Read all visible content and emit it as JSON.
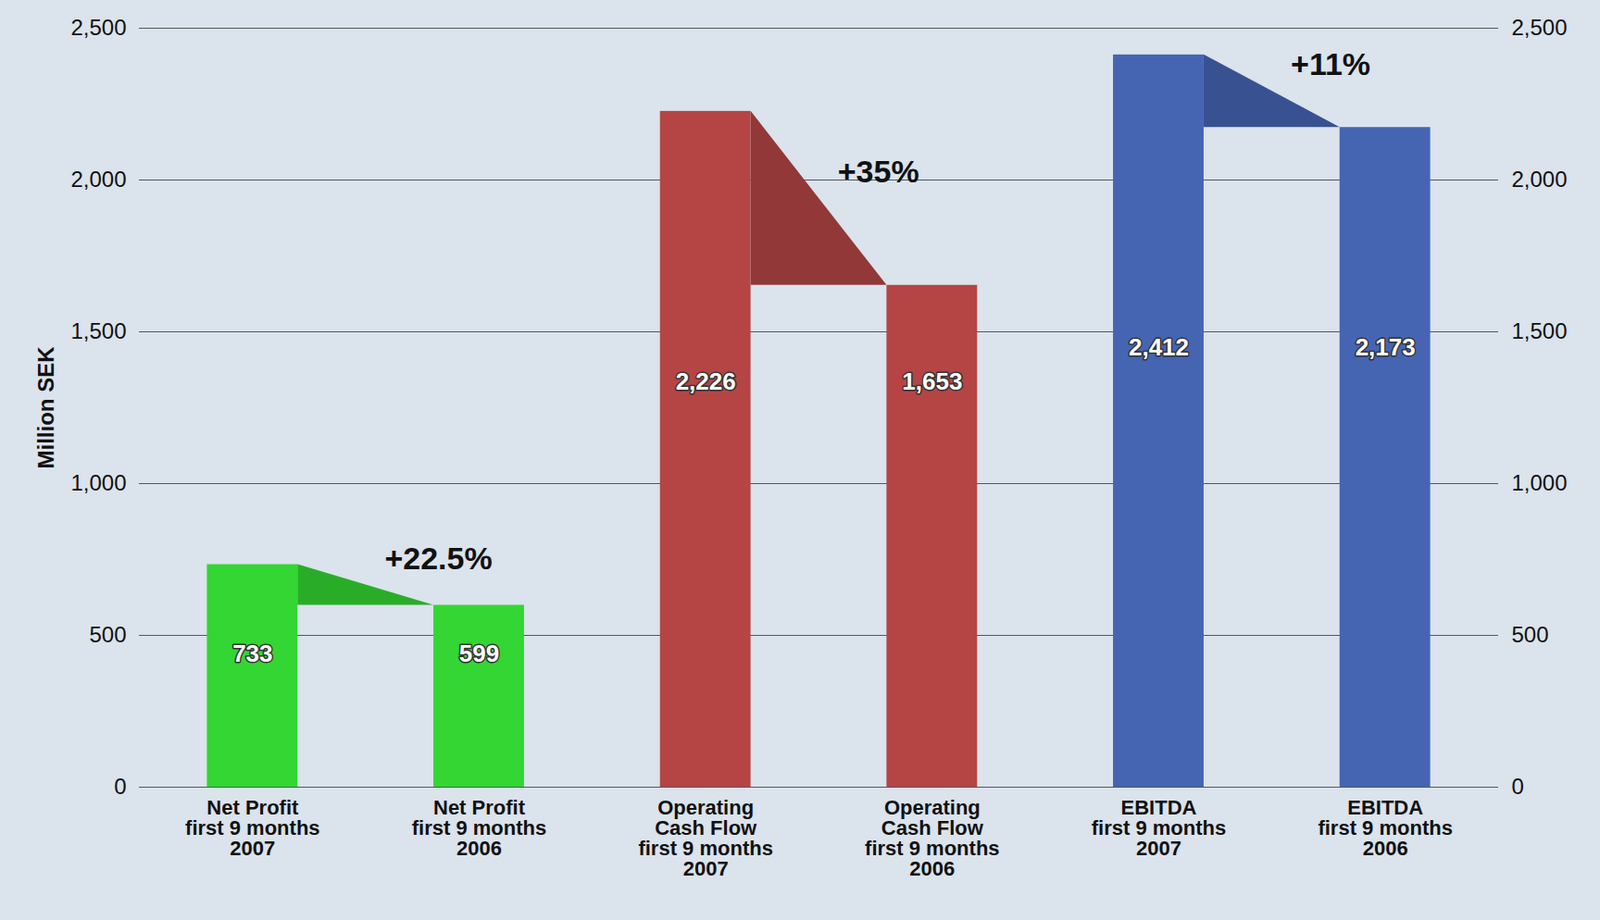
{
  "chart_data": {
    "type": "bar",
    "categories": [
      "Net Profit\nfirst 9 months\n2007",
      "Net Profit\nfirst 9 months\n2006",
      "Operating\nCash Flow\nfirst 9 months\n2007",
      "Operating\nCash Flow\nfirst 9 months\n2006",
      "EBITDA\nfirst 9 months\n2007",
      "EBITDA\nfirst 9 months\n2006"
    ],
    "values": [
      733,
      599,
      2226,
      1653,
      2412,
      2173
    ],
    "value_labels": [
      "733",
      "599",
      "2,226",
      "1,653",
      "2,412",
      "2,173"
    ],
    "colors": [
      "#33d633",
      "#33d633",
      "#b54545",
      "#b54545",
      "#4565b3",
      "#4565b3"
    ],
    "y_label": "Million SEK",
    "ylim": [
      0,
      2500
    ],
    "yticks": [
      0,
      500,
      1000,
      1500,
      2000,
      2500
    ],
    "grid": true,
    "data_labels": true,
    "annotations": [
      "+22.5%",
      "+35%",
      "+11%"
    ]
  }
}
